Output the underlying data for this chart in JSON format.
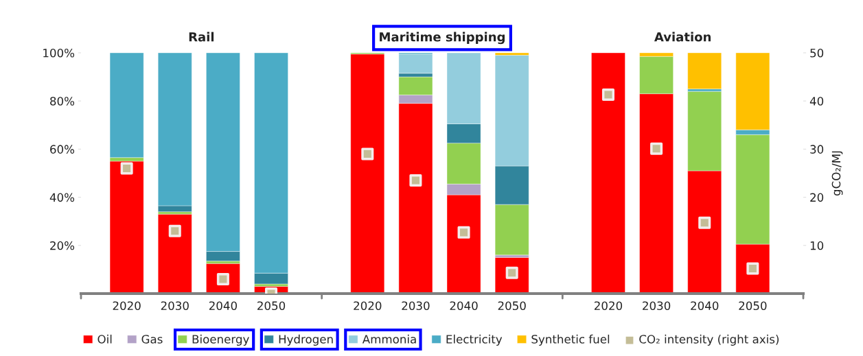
{
  "chart_data": [
    {
      "type": "bar",
      "title": "Rail",
      "stacked": true,
      "categories": [
        "2020",
        "2030",
        "2040",
        "2050"
      ],
      "ylim": [
        0,
        100
      ],
      "yticks": [
        {
          "value": 20,
          "label": "20%"
        },
        {
          "value": 40,
          "label": "40%"
        },
        {
          "value": 60,
          "label": "60%"
        },
        {
          "value": 80,
          "label": "80%"
        },
        {
          "value": 100,
          "label": "100%"
        }
      ],
      "y2lim": [
        0,
        50
      ],
      "tick_labels": [
        "x",
        "y"
      ],
      "grid": false,
      "legend": "bottom",
      "series": [
        {
          "name": "Oil",
          "color": "#ff0000",
          "values": [
            55,
            33,
            12.5,
            3
          ]
        },
        {
          "name": "Bioenergy",
          "color": "#92d050",
          "values": [
            1.5,
            1,
            1,
            1
          ]
        },
        {
          "name": "Hydrogen",
          "color": "#31859c",
          "values": [
            null,
            2.5,
            4,
            4.5
          ]
        },
        {
          "name": "Electricity",
          "color": "#4bacc6",
          "values": [
            43.5,
            63.5,
            82.5,
            91.5
          ]
        },
        {
          "name": "CO₂ intensity (right axis)",
          "type": "scatter",
          "axis": "y2",
          "marker": "square",
          "color": "#c4bd97",
          "values": [
            26,
            13,
            3,
            0
          ]
        }
      ]
    },
    {
      "type": "bar",
      "title": "Maritime shipping",
      "stacked": true,
      "categories": [
        "2020",
        "2030",
        "2040",
        "2050"
      ],
      "ylim": [
        0,
        100
      ],
      "y2lim": [
        0,
        50
      ],
      "tick_labels": [
        "x"
      ],
      "grid": false,
      "legend": "bottom",
      "series": [
        {
          "name": "Oil",
          "color": "#ff0000",
          "values": [
            99.5,
            79,
            41,
            15
          ]
        },
        {
          "name": "Gas",
          "color": "#b3a2c7",
          "values": [
            null,
            3.5,
            4.5,
            1
          ]
        },
        {
          "name": "Bioenergy",
          "color": "#92d050",
          "values": [
            0.5,
            7.5,
            17,
            21
          ]
        },
        {
          "name": "Hydrogen",
          "color": "#31859c",
          "values": [
            null,
            1.5,
            8,
            16
          ]
        },
        {
          "name": "Ammonia",
          "color": "#93cddd",
          "values": [
            null,
            8,
            29.5,
            46
          ]
        },
        {
          "name": "Electricity",
          "color": "#4bacc6",
          "values": [
            null,
            0.5,
            null,
            null
          ]
        },
        {
          "name": "Synthetic fuel",
          "color": "#ffc000",
          "values": [
            null,
            null,
            null,
            1
          ]
        },
        {
          "name": "CO₂ intensity (right axis)",
          "type": "scatter",
          "axis": "y2",
          "marker": "square",
          "color": "#c4bd97",
          "values": [
            29,
            23.5,
            12.7,
            4.3
          ]
        }
      ]
    },
    {
      "type": "bar",
      "title": "Aviation",
      "stacked": true,
      "categories": [
        "2020",
        "2030",
        "2040",
        "2050"
      ],
      "ylim": [
        0,
        100
      ],
      "y2lim": [
        0,
        50
      ],
      "y2ticks": [
        10,
        20,
        30,
        40,
        50
      ],
      "y2label": "gCO₂/MJ",
      "tick_labels": [
        "x",
        "y2"
      ],
      "grid": false,
      "legend": "bottom",
      "series": [
        {
          "name": "Oil",
          "color": "#ff0000",
          "values": [
            100,
            83,
            51,
            20.5
          ]
        },
        {
          "name": "Bioenergy",
          "color": "#92d050",
          "values": [
            null,
            15.5,
            33,
            45.5
          ]
        },
        {
          "name": "Electricity",
          "color": "#4bacc6",
          "values": [
            null,
            null,
            1,
            2
          ]
        },
        {
          "name": "Synthetic fuel",
          "color": "#ffc000",
          "values": [
            null,
            1.5,
            15,
            32
          ]
        },
        {
          "name": "CO₂ intensity (right axis)",
          "type": "scatter",
          "axis": "y2",
          "marker": "square",
          "color": "#c4bd97",
          "values": [
            41.3,
            30.1,
            14.7,
            5.2
          ]
        }
      ]
    }
  ]
}
